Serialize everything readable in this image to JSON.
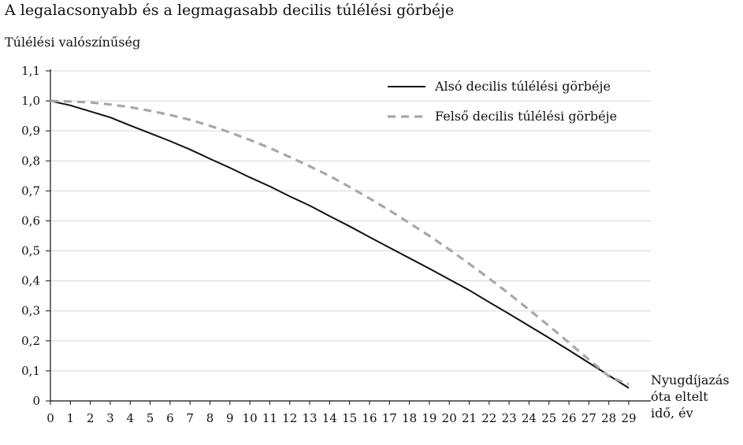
{
  "chart_data": {
    "type": "line",
    "title": "A legalacsonyabb és a legmagasabb decilis túlélési görbéje",
    "ylabel": "Túlélési valószínűség",
    "xlabel_lines": [
      "Nyugdíjazás",
      "óta eltelt",
      "idő, év"
    ],
    "x": [
      0,
      1,
      2,
      3,
      4,
      5,
      6,
      7,
      8,
      9,
      10,
      11,
      12,
      13,
      14,
      15,
      16,
      17,
      18,
      19,
      20,
      21,
      22,
      23,
      24,
      25,
      26,
      27,
      28,
      29
    ],
    "ylim": [
      0,
      1.1
    ],
    "y_ticks": [
      "0",
      "0,1",
      "0,2",
      "0,3",
      "0,4",
      "0,5",
      "0,6",
      "0,7",
      "0,8",
      "0,9",
      "1,0",
      "1,1"
    ],
    "grid": true,
    "legend_position": "top-right",
    "series": [
      {
        "name": "Alsó decilis túlélési görbéje",
        "color": "#111111",
        "style": "solid",
        "values": [
          1.0,
          0.985,
          0.965,
          0.945,
          0.918,
          0.892,
          0.866,
          0.838,
          0.807,
          0.777,
          0.745,
          0.715,
          0.682,
          0.651,
          0.616,
          0.582,
          0.546,
          0.511,
          0.476,
          0.441,
          0.405,
          0.369,
          0.329,
          0.29,
          0.25,
          0.21,
          0.169,
          0.127,
          0.085,
          0.043
        ]
      },
      {
        "name": "Felső decilis túlélési görbéje",
        "color": "#a8a8a8",
        "style": "dashed",
        "values": [
          1.0,
          0.998,
          0.995,
          0.988,
          0.979,
          0.967,
          0.953,
          0.937,
          0.917,
          0.895,
          0.87,
          0.843,
          0.813,
          0.782,
          0.75,
          0.713,
          0.675,
          0.635,
          0.593,
          0.55,
          0.505,
          0.457,
          0.408,
          0.357,
          0.304,
          0.25,
          0.194,
          0.138,
          0.082,
          0.055
        ]
      }
    ]
  }
}
